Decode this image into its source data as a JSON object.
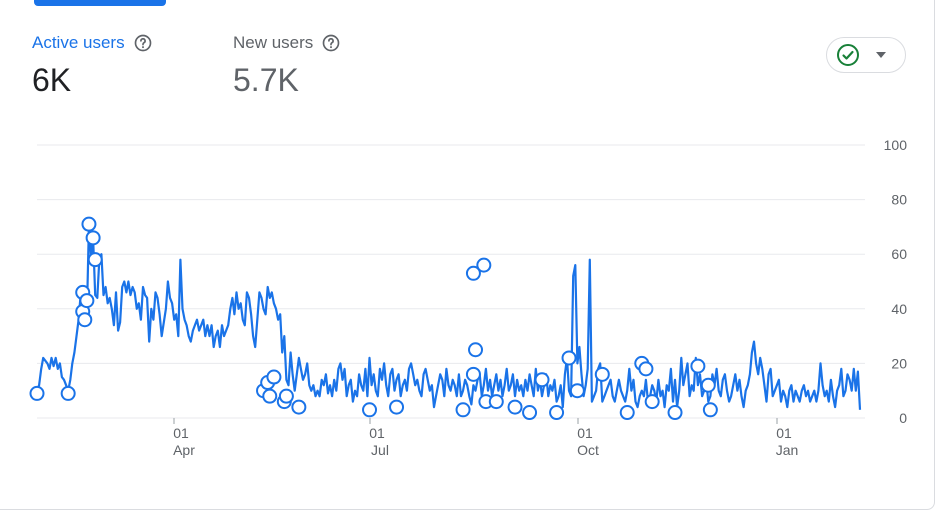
{
  "metrics": {
    "active": {
      "label": "Active users",
      "value": "6K"
    },
    "new": {
      "label": "New users",
      "value": "5.7K"
    }
  },
  "status_button": {
    "icon": "check-circle-icon",
    "caret": "caret-down-icon"
  },
  "colors": {
    "accent": "#1a73e8",
    "success": "#188038",
    "grid": "#e8eaed",
    "text_secondary": "#5f6368"
  },
  "chart_data": {
    "type": "line",
    "title": "",
    "xlabel": "",
    "ylabel": "",
    "ylim": [
      0,
      100
    ],
    "grid": true,
    "y_ticks": [
      "100",
      "80",
      "60",
      "40",
      "20",
      "0"
    ],
    "x_ticks": [
      {
        "day": "01",
        "month": "Apr"
      },
      {
        "day": "01",
        "month": "Jul"
      },
      {
        "day": "01",
        "month": "Oct"
      },
      {
        "day": "01",
        "month": "Jan"
      }
    ],
    "series": [
      {
        "values": [
          10,
          12,
          18,
          22,
          21,
          20,
          18,
          22,
          19,
          22,
          18,
          20,
          15,
          14,
          12,
          10,
          14,
          20,
          24,
          30,
          36,
          45,
          48,
          40,
          38,
          72,
          58,
          66,
          45,
          44,
          58,
          60,
          45,
          48,
          42,
          44,
          40,
          34,
          46,
          32,
          35,
          48,
          50,
          46,
          50,
          45,
          48,
          46,
          40,
          42,
          36,
          48,
          45,
          44,
          28,
          40,
          36,
          46,
          44,
          38,
          30,
          35,
          40,
          50,
          44,
          42,
          36,
          38,
          30,
          58,
          40,
          36,
          34,
          30,
          28,
          32,
          34,
          36,
          32,
          34,
          36,
          30,
          34,
          30,
          34,
          26,
          30,
          32,
          26,
          34,
          30,
          32,
          34,
          40,
          44,
          38,
          46,
          40,
          42,
          36,
          34,
          46,
          44,
          38,
          30,
          26,
          36,
          46,
          44,
          40,
          38,
          48,
          44,
          46,
          42,
          40,
          36,
          38,
          24,
          30,
          14,
          12,
          24,
          16,
          10,
          16,
          22,
          18,
          14,
          16,
          20,
          12,
          10,
          12,
          8,
          10,
          8,
          14,
          12,
          16,
          9,
          12,
          8,
          14,
          10,
          18,
          20,
          14,
          18,
          8,
          12,
          14,
          6,
          10,
          8,
          16,
          12,
          10,
          18,
          8,
          22,
          12,
          16,
          10,
          8,
          18,
          14,
          20,
          12,
          8,
          16,
          18,
          10,
          14,
          16,
          8,
          12,
          14,
          10,
          18,
          20,
          16,
          12,
          14,
          10,
          8,
          16,
          18,
          14,
          10,
          12,
          4,
          8,
          12,
          16,
          14,
          8,
          18,
          12,
          10,
          14,
          12,
          8,
          16,
          8,
          10,
          14,
          12,
          8,
          5,
          12,
          10,
          14,
          16,
          8,
          12,
          18,
          10,
          14,
          8,
          12,
          16,
          10,
          14,
          8,
          12,
          18,
          10,
          12,
          16,
          8,
          14,
          10,
          12,
          8,
          14,
          10,
          16,
          12,
          8,
          18,
          10,
          14,
          8,
          12,
          16,
          8,
          12,
          10,
          14,
          6,
          8,
          12,
          4,
          16,
          22,
          10,
          8,
          52,
          56,
          20,
          26,
          16,
          8,
          12,
          18,
          58,
          6,
          8,
          10,
          18,
          20,
          6,
          8,
          10,
          12,
          14,
          8,
          6,
          10,
          14,
          10,
          8,
          6,
          10,
          18,
          10,
          14,
          6,
          4,
          8,
          10,
          8,
          14,
          6,
          8,
          12,
          10,
          6,
          14,
          8,
          10,
          4,
          12,
          10,
          18,
          6,
          14,
          4,
          10,
          22,
          12,
          16,
          20,
          8,
          12,
          10,
          22,
          12,
          16,
          8,
          10,
          14,
          6,
          8,
          16,
          12,
          18,
          10,
          8,
          14,
          16,
          10,
          6,
          8,
          12,
          16,
          10,
          14,
          8,
          4,
          10,
          12,
          16,
          24,
          28,
          20,
          16,
          22,
          18,
          12,
          6,
          16,
          18,
          8,
          10,
          12,
          14,
          6,
          10,
          8,
          4,
          10,
          12,
          6,
          10,
          8,
          6,
          10,
          12,
          8,
          10,
          6,
          8,
          10,
          6,
          10,
          20,
          12,
          8,
          10,
          6,
          14,
          8,
          4,
          10,
          12,
          18,
          8,
          10,
          16,
          14,
          10,
          18,
          10,
          17,
          3
        ]
      }
    ],
    "markers": [
      {
        "x": 0,
        "y": 9
      },
      {
        "x": 15,
        "y": 9
      },
      {
        "x": 22,
        "y": 46
      },
      {
        "x": 22,
        "y": 39
      },
      {
        "x": 23,
        "y": 36
      },
      {
        "x": 24,
        "y": 43
      },
      {
        "x": 25,
        "y": 71
      },
      {
        "x": 27,
        "y": 66
      },
      {
        "x": 28,
        "y": 58
      },
      {
        "x": 109,
        "y": 10
      },
      {
        "x": 111,
        "y": 13
      },
      {
        "x": 112,
        "y": 8
      },
      {
        "x": 114,
        "y": 15
      },
      {
        "x": 119,
        "y": 6
      },
      {
        "x": 120,
        "y": 8
      },
      {
        "x": 126,
        "y": 4
      },
      {
        "x": 160,
        "y": 3
      },
      {
        "x": 173,
        "y": 4
      },
      {
        "x": 205,
        "y": 3
      },
      {
        "x": 210,
        "y": 16
      },
      {
        "x": 210,
        "y": 53
      },
      {
        "x": 211,
        "y": 25
      },
      {
        "x": 215,
        "y": 56
      },
      {
        "x": 216,
        "y": 6
      },
      {
        "x": 221,
        "y": 6
      },
      {
        "x": 230,
        "y": 4
      },
      {
        "x": 237,
        "y": 2
      },
      {
        "x": 243,
        "y": 14
      },
      {
        "x": 250,
        "y": 2
      },
      {
        "x": 256,
        "y": 22
      },
      {
        "x": 260,
        "y": 10
      },
      {
        "x": 272,
        "y": 16
      },
      {
        "x": 284,
        "y": 2
      },
      {
        "x": 291,
        "y": 20
      },
      {
        "x": 293,
        "y": 18
      },
      {
        "x": 296,
        "y": 6
      },
      {
        "x": 307,
        "y": 2
      },
      {
        "x": 318,
        "y": 19
      },
      {
        "x": 323,
        "y": 12
      },
      {
        "x": 324,
        "y": 3
      }
    ]
  }
}
